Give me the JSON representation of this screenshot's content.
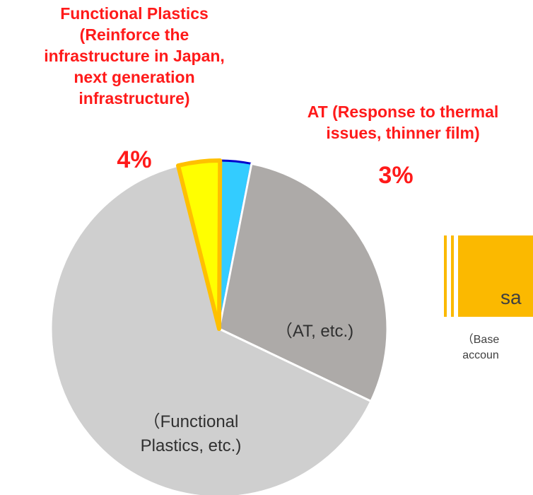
{
  "chart_data": {
    "type": "pie",
    "categories": [
      "AT (Response to thermal issues, thinner film)",
      "AT, etc.",
      "Functional Plastics, etc.",
      "Functional Plastics (Reinforce the infrastructure in Japan, next generation infrastructure)"
    ],
    "values": [
      3,
      29,
      64,
      4
    ],
    "title": "",
    "colors": [
      "#33ccff",
      "#adaaa8",
      "#cfcfcf",
      "#ffff00"
    ],
    "edge_colors": [
      "#0000cc",
      "#ffffff",
      "#ffffff",
      "#ffc000"
    ]
  },
  "labels": {
    "fp_title": "Functional Plastics (Reinforce the infrastructure in Japan, next generation infrastructure)",
    "fp_pct": "4%",
    "at_title": "AT (Response to thermal issues, thinner film)",
    "at_pct": "3%",
    "slice_at": "（AT, etc.)",
    "slice_fp": "（Functional Plastics, etc.)"
  },
  "legend": {
    "word": "sa",
    "note": "（Base\naccoun"
  }
}
